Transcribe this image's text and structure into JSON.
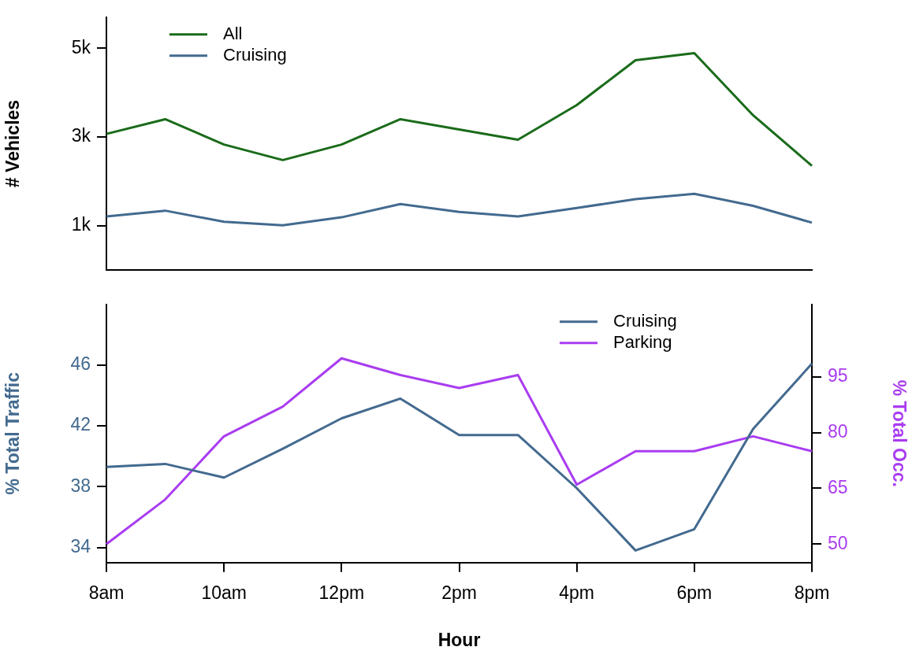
{
  "chart_data": [
    {
      "type": "line",
      "categories": [
        null,
        null,
        null,
        null,
        null,
        null,
        null,
        null,
        null,
        null,
        null,
        null,
        null
      ],
      "ylim": [
        0,
        5700
      ],
      "yticks": [
        {
          "value": 1000,
          "label": "1k"
        },
        {
          "value": 3000,
          "label": "3k"
        },
        {
          "value": 5000,
          "label": "5k"
        }
      ],
      "ylabel": "# Vehicles",
      "tick_labels": "y",
      "legend": "top left",
      "marker": "none",
      "series": [
        {
          "name": "All",
          "color": "#1a6b1a",
          "values": [
            3070,
            3400,
            2830,
            2480,
            2830,
            3400,
            3170,
            2940,
            3720,
            4730,
            4890,
            3490,
            2350
          ]
        },
        {
          "name": "Cruising",
          "color": "#436a8f",
          "values": [
            1210,
            1340,
            1090,
            1010,
            1190,
            1490,
            1310,
            1210,
            1400,
            1600,
            1720,
            1450,
            1070
          ]
        }
      ]
    },
    {
      "type": "line",
      "categories": [
        "8am",
        null,
        "10am",
        null,
        "12pm",
        null,
        "2pm",
        null,
        "4pm",
        null,
        "6pm",
        null,
        "8pm"
      ],
      "ylim": [
        33,
        50
      ],
      "yticks": [
        34,
        38,
        42,
        46
      ],
      "y2lim": [
        45,
        114.5
      ],
      "y2ticks": [
        50,
        65,
        80,
        95
      ],
      "xlabel": "Hour",
      "ylabel": "% Total Traffic",
      "y2label": "% Total Occ.",
      "legend": "top right",
      "marker": "none",
      "series": [
        {
          "name": "Cruising",
          "color": "#436a8f",
          "values": [
            39.3,
            39.5,
            38.6,
            40.5,
            42.5,
            43.8,
            41.4,
            41.4,
            37.9,
            33.8,
            35.2,
            41.8,
            46.1
          ]
        },
        {
          "name": "Parking",
          "color": "#a93cf0",
          "axis": "y2",
          "values": [
            50,
            62,
            79,
            87,
            100,
            95.5,
            92,
            95.5,
            66,
            75,
            75,
            79,
            75
          ]
        }
      ]
    }
  ]
}
